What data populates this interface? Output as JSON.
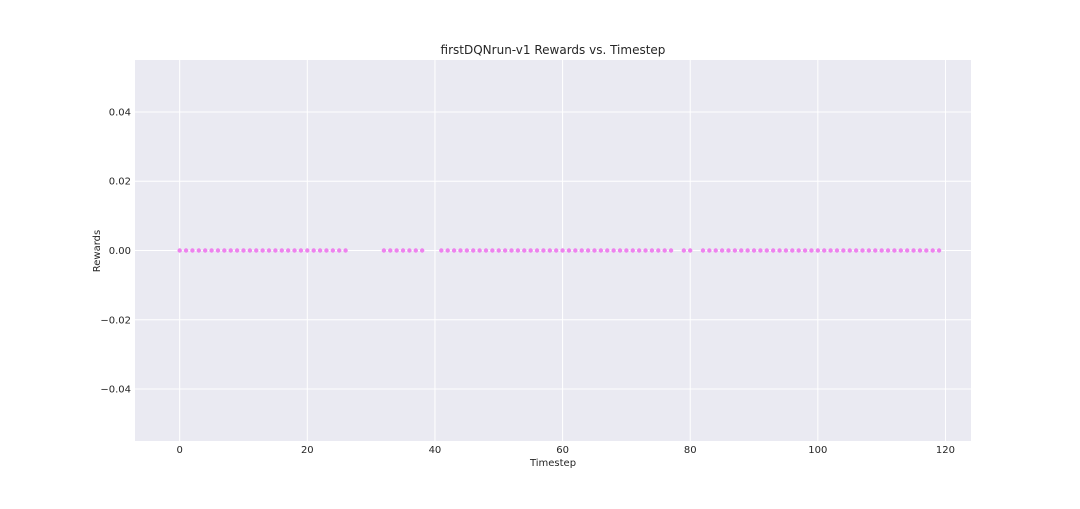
{
  "chart_data": {
    "type": "scatter",
    "title": "firstDQNrun-v1 Rewards vs. Timestep",
    "xlabel": "Timestep",
    "ylabel": "Rewards",
    "xlim": [
      -7,
      124
    ],
    "ylim": [
      -0.055,
      0.055
    ],
    "xticks": [
      0,
      20,
      40,
      60,
      80,
      100,
      120
    ],
    "yticks": [
      -0.04,
      -0.02,
      0.0,
      0.02,
      0.04
    ],
    "xtick_labels": [
      "0",
      "20",
      "40",
      "60",
      "80",
      "100",
      "120"
    ],
    "ytick_labels": [
      "−0.04",
      "−0.02",
      "0.00",
      "0.02",
      "0.04"
    ],
    "grid": true,
    "marker_color": "#ee82ee",
    "background_color": "#eaeaf2",
    "grid_color": "#ffffff",
    "series": [
      {
        "x": [
          0,
          1,
          2,
          3,
          4,
          5,
          6,
          7,
          8,
          9,
          10,
          11,
          12,
          13,
          14,
          15,
          16,
          17,
          18,
          19,
          20,
          21,
          22,
          23,
          24,
          25,
          26,
          32,
          33,
          34,
          35,
          36,
          37,
          38,
          41,
          42,
          43,
          44,
          45,
          46,
          47,
          48,
          49,
          50,
          51,
          52,
          53,
          54,
          55,
          56,
          57,
          58,
          59,
          60,
          61,
          62,
          63,
          64,
          65,
          66,
          67,
          68,
          69,
          70,
          71,
          72,
          73,
          74,
          75,
          76,
          77,
          79,
          80,
          82,
          83,
          84,
          85,
          86,
          87,
          88,
          89,
          90,
          91,
          92,
          93,
          94,
          95,
          96,
          97,
          98,
          99,
          100,
          101,
          102,
          103,
          104,
          105,
          106,
          107,
          108,
          109,
          110,
          111,
          112,
          113,
          114,
          115,
          116,
          117,
          118,
          119
        ],
        "y": [
          0,
          0,
          0,
          0,
          0,
          0,
          0,
          0,
          0,
          0,
          0,
          0,
          0,
          0,
          0,
          0,
          0,
          0,
          0,
          0,
          0,
          0,
          0,
          0,
          0,
          0,
          0,
          0,
          0,
          0,
          0,
          0,
          0,
          0,
          0,
          0,
          0,
          0,
          0,
          0,
          0,
          0,
          0,
          0,
          0,
          0,
          0,
          0,
          0,
          0,
          0,
          0,
          0,
          0,
          0,
          0,
          0,
          0,
          0,
          0,
          0,
          0,
          0,
          0,
          0,
          0,
          0,
          0,
          0,
          0,
          0,
          0,
          0,
          0,
          0,
          0,
          0,
          0,
          0,
          0,
          0,
          0,
          0,
          0,
          0,
          0,
          0,
          0,
          0,
          0,
          0,
          0,
          0,
          0,
          0,
          0,
          0,
          0,
          0,
          0,
          0,
          0,
          0,
          0,
          0,
          0,
          0,
          0,
          0,
          0,
          0
        ]
      }
    ]
  }
}
